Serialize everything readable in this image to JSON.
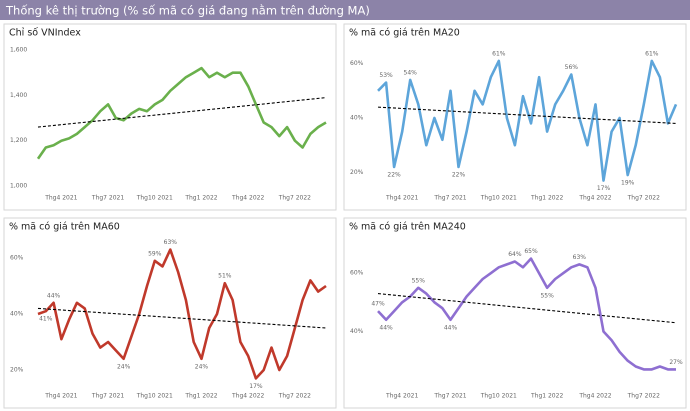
{
  "header": {
    "title": "Thống kê thị trường (% số mã có giá đang nằm trên đường MA)"
  },
  "chart_data": [
    {
      "type": "line",
      "title": "Chỉ số VNIndex",
      "color": "#6ab04c",
      "categories": [
        null,
        null,
        null,
        "Thg4 2021",
        null,
        null,
        null,
        null,
        null,
        "Thg7 2021",
        null,
        null,
        null,
        null,
        null,
        "Thg10 2021",
        null,
        null,
        null,
        null,
        null,
        "Thg1 2022",
        null,
        null,
        null,
        null,
        null,
        "Thg4 2022",
        null,
        null,
        null,
        null,
        null,
        "Thg7 2022",
        null,
        null,
        null,
        null
      ],
      "values": [
        1120,
        1170,
        1180,
        1200,
        1210,
        1230,
        1260,
        1290,
        1330,
        1360,
        1300,
        1290,
        1320,
        1340,
        1330,
        1360,
        1380,
        1420,
        1450,
        1480,
        1500,
        1520,
        1480,
        1500,
        1480,
        1500,
        1500,
        1440,
        1360,
        1280,
        1260,
        1220,
        1260,
        1200,
        1170,
        1230,
        1260,
        1280
      ],
      "trend": [
        1260,
        1390
      ],
      "ylim": [
        1000,
        1600
      ],
      "yticks": [
        {
          "value": 1000,
          "label": "1,000"
        },
        {
          "value": 1200,
          "label": "1,200"
        },
        {
          "value": 1400,
          "label": "1,400"
        },
        {
          "value": 1600,
          "label": "1,600"
        }
      ]
    },
    {
      "type": "line",
      "title": "% mã có giá trên MA20",
      "color": "#5da5da",
      "categories": [
        null,
        null,
        null,
        "Thg4 2021",
        null,
        null,
        null,
        null,
        null,
        "Thg7 2021",
        null,
        null,
        null,
        null,
        null,
        "Thg10 2021",
        null,
        null,
        null,
        null,
        null,
        "Thg1 2022",
        null,
        null,
        null,
        null,
        null,
        "Thg4 2022",
        null,
        null,
        null,
        null,
        null,
        "Thg7 2022",
        null,
        null,
        null,
        null
      ],
      "values": [
        50,
        53,
        22,
        35,
        54,
        45,
        30,
        40,
        32,
        50,
        22,
        35,
        50,
        45,
        55,
        61,
        40,
        30,
        48,
        38,
        55,
        35,
        45,
        50,
        56,
        40,
        30,
        45,
        17,
        35,
        40,
        19,
        30,
        45,
        61,
        55,
        38,
        45
      ],
      "value_labels": [
        null,
        "53%",
        "22%",
        null,
        "54%",
        null,
        null,
        null,
        null,
        null,
        "22%",
        null,
        null,
        null,
        null,
        "61%",
        null,
        null,
        null,
        null,
        null,
        null,
        null,
        null,
        "56%",
        null,
        null,
        null,
        "17%",
        null,
        null,
        "19%",
        null,
        null,
        "61%",
        null,
        null,
        null
      ],
      "trend": [
        44,
        38
      ],
      "ylim": [
        15,
        65
      ],
      "yticks": [
        {
          "value": 20,
          "label": "20%"
        },
        {
          "value": 40,
          "label": "40%"
        },
        {
          "value": 60,
          "label": "60%"
        }
      ]
    },
    {
      "type": "line",
      "title": "% mã có giá trên MA60",
      "color": "#c0392b",
      "categories": [
        null,
        null,
        null,
        "Thg4 2021",
        null,
        null,
        null,
        null,
        null,
        "Thg7 2021",
        null,
        null,
        null,
        null,
        null,
        "Thg10 2021",
        null,
        null,
        null,
        null,
        null,
        "Thg1 2022",
        null,
        null,
        null,
        null,
        null,
        "Thg4 2022",
        null,
        null,
        null,
        null,
        null,
        "Thg7 2022",
        null,
        null,
        null,
        null
      ],
      "values": [
        40,
        41,
        44,
        31,
        38,
        44,
        42,
        33,
        28,
        30,
        27,
        24,
        32,
        40,
        50,
        59,
        57,
        63,
        55,
        45,
        30,
        24,
        35,
        40,
        51,
        45,
        30,
        25,
        17,
        20,
        28,
        20,
        25,
        35,
        45,
        52,
        48,
        50
      ],
      "value_labels": [
        null,
        "41%",
        "44%",
        null,
        null,
        null,
        null,
        null,
        null,
        null,
        null,
        "24%",
        null,
        null,
        null,
        "59%",
        null,
        "63%",
        null,
        null,
        null,
        "24%",
        null,
        null,
        "51%",
        null,
        null,
        null,
        "17%",
        null,
        null,
        null,
        null,
        null,
        null,
        null,
        null,
        null
      ],
      "trend": [
        42,
        35
      ],
      "ylim": [
        15,
        65
      ],
      "yticks": [
        {
          "value": 20,
          "label": "20%"
        },
        {
          "value": 40,
          "label": "40%"
        },
        {
          "value": 60,
          "label": "60%"
        }
      ]
    },
    {
      "type": "line",
      "title": "% mã có giá trên MA240",
      "color": "#8e6fd1",
      "categories": [
        null,
        null,
        null,
        "Thg4 2021",
        null,
        null,
        null,
        null,
        null,
        "Thg7 2021",
        null,
        null,
        null,
        null,
        null,
        "Thg10 2021",
        null,
        null,
        null,
        null,
        null,
        "Thg1 2022",
        null,
        null,
        null,
        null,
        null,
        "Thg4 2022",
        null,
        null,
        null,
        null,
        null,
        "Thg7 2022",
        null,
        null,
        null,
        null
      ],
      "values": [
        47,
        44,
        47,
        50,
        52,
        55,
        53,
        50,
        48,
        44,
        48,
        52,
        55,
        58,
        60,
        62,
        63,
        64,
        62,
        65,
        60,
        55,
        58,
        60,
        62,
        63,
        62,
        55,
        40,
        37,
        33,
        30,
        28,
        27,
        27,
        28,
        27,
        27
      ],
      "value_labels": [
        "47%",
        "44%",
        null,
        null,
        null,
        "55%",
        null,
        null,
        null,
        "44%",
        null,
        null,
        null,
        null,
        null,
        null,
        null,
        "64%",
        null,
        "65%",
        null,
        "55%",
        null,
        null,
        null,
        "63%",
        null,
        null,
        null,
        null,
        null,
        null,
        null,
        null,
        null,
        null,
        null,
        "27%"
      ],
      "trend": [
        53,
        43
      ],
      "ylim": [
        22,
        70
      ],
      "yticks": [
        {
          "value": 40,
          "label": "40%"
        },
        {
          "value": 60,
          "label": "60%"
        }
      ]
    }
  ]
}
